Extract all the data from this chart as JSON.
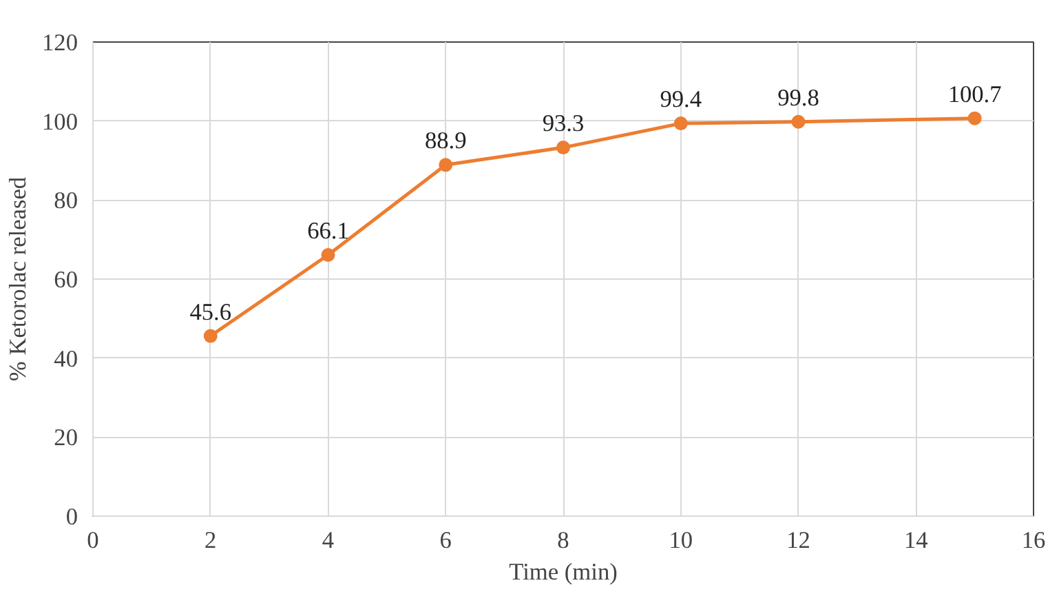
{
  "chart_data": {
    "type": "line",
    "xlabel": "Time (min)",
    "ylabel": "% Ketorolac released",
    "x": [
      2,
      4,
      6,
      8,
      10,
      12,
      15
    ],
    "series": [
      {
        "color": "#ed7d31",
        "values": [
          45.6,
          66.1,
          88.9,
          93.3,
          99.4,
          99.8,
          100.7
        ]
      }
    ],
    "xlim": [
      0,
      16
    ],
    "xticks": [
      0,
      2,
      4,
      6,
      8,
      10,
      12,
      14,
      16
    ],
    "ylim": [
      0,
      120
    ],
    "yticks": [
      0,
      20,
      40,
      60,
      80,
      100,
      120
    ],
    "grid": true,
    "marker": "circle",
    "line_style": "solid",
    "data_labels": true
  }
}
